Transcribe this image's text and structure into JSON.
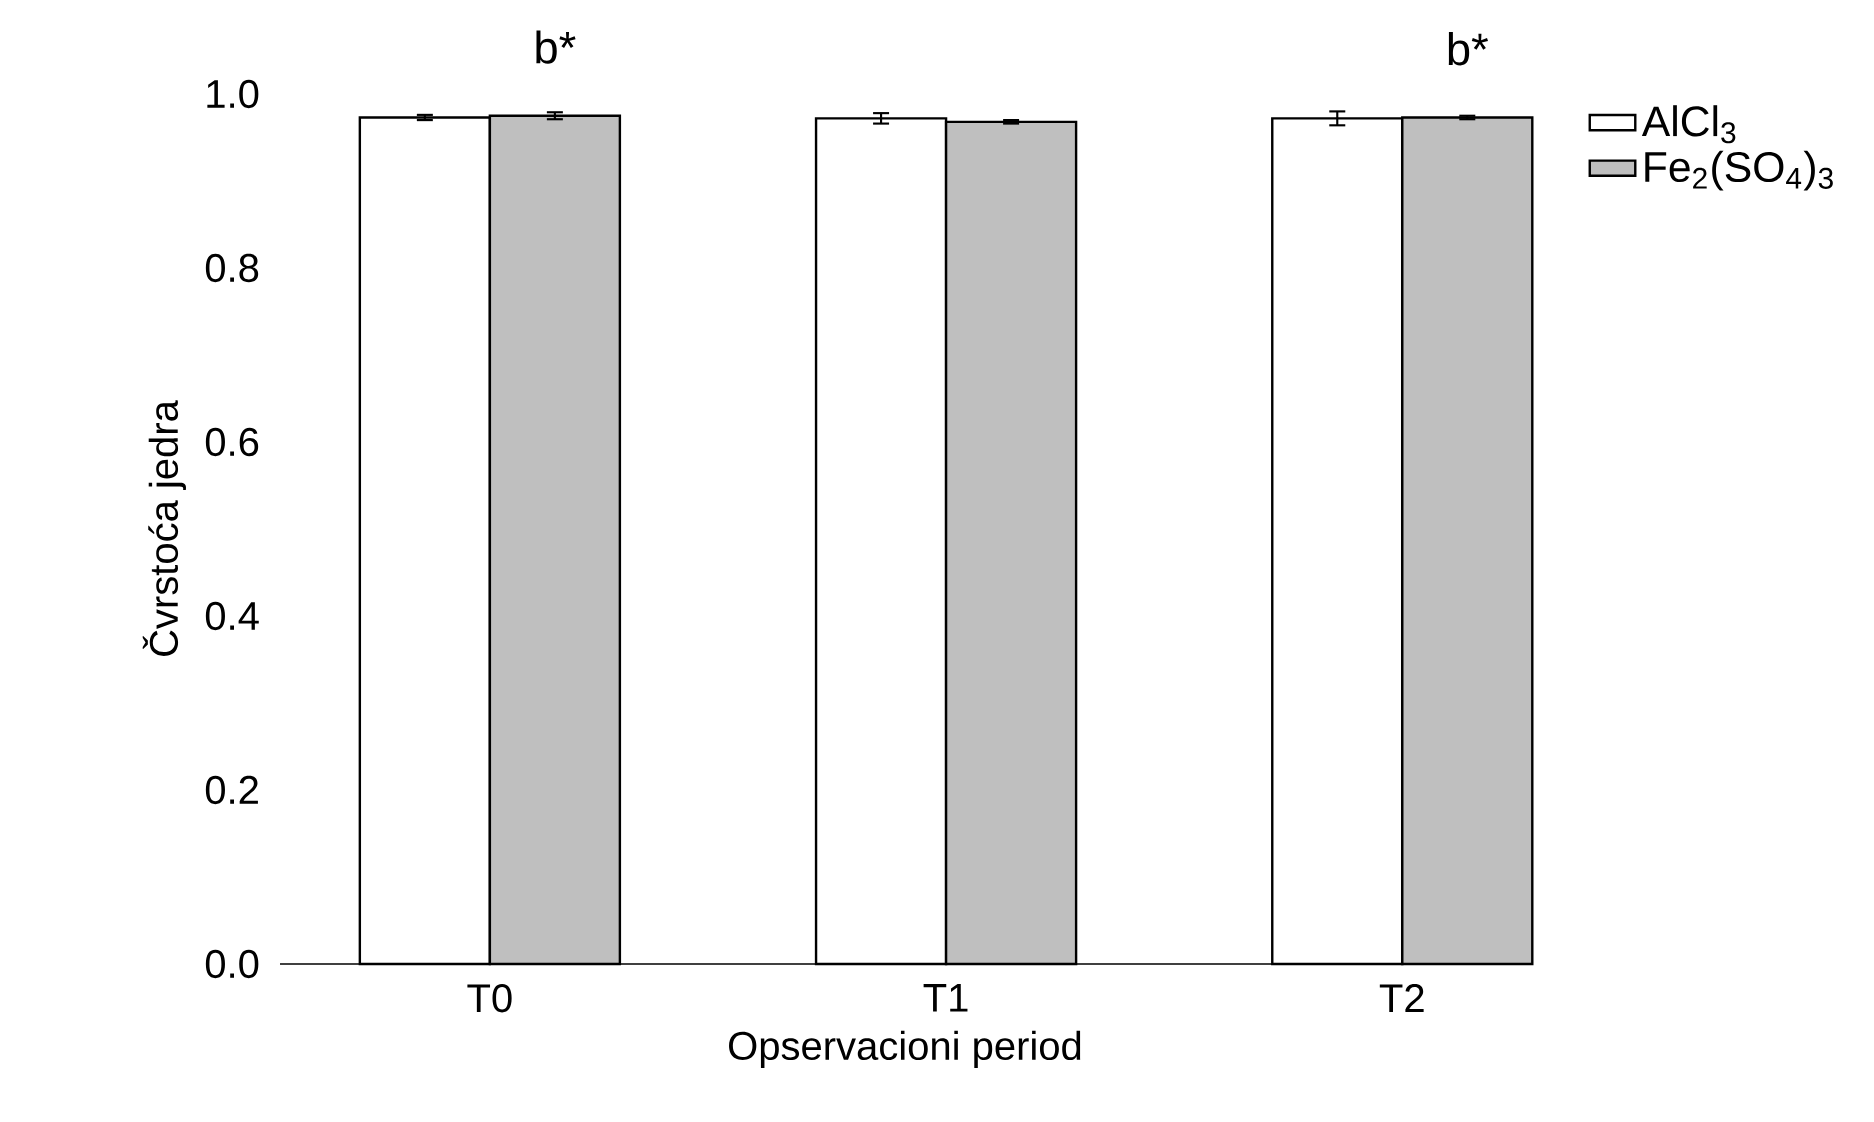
{
  "chart_data": {
    "type": "bar",
    "xlabel": "Opservacioni period",
    "ylabel": "Čvrstoća jedra",
    "categories": [
      "T0",
      "T1",
      "T2"
    ],
    "series": [
      {
        "name": "AlCl$_{3}$",
        "color": "#ffffff",
        "values": [
          0.973,
          0.972,
          0.972
        ],
        "errors": [
          0.003,
          0.006,
          0.008
        ]
      },
      {
        "name": "Fe$_{2}$(SO$_{4}$)$_{3}$",
        "color": "#bfbfbf",
        "values": [
          0.975,
          0.968,
          0.973
        ],
        "errors": [
          0.004,
          0.002,
          0.002
        ]
      }
    ],
    "ylim": [
      0,
      1.0
    ],
    "yticks": [
      {
        "value": 0,
        "label": "0.0"
      },
      0.2,
      0.4,
      0.6,
      0.8,
      {
        "value": 1.0,
        "label": "1.0"
      }
    ],
    "annotations": [
      {
        "text": "b*",
        "x": "T0",
        "y": 0.975
      },
      {
        "text": "b*",
        "x": "T2",
        "y": 0.973
      }
    ],
    "legend": "right",
    "grid": false
  }
}
